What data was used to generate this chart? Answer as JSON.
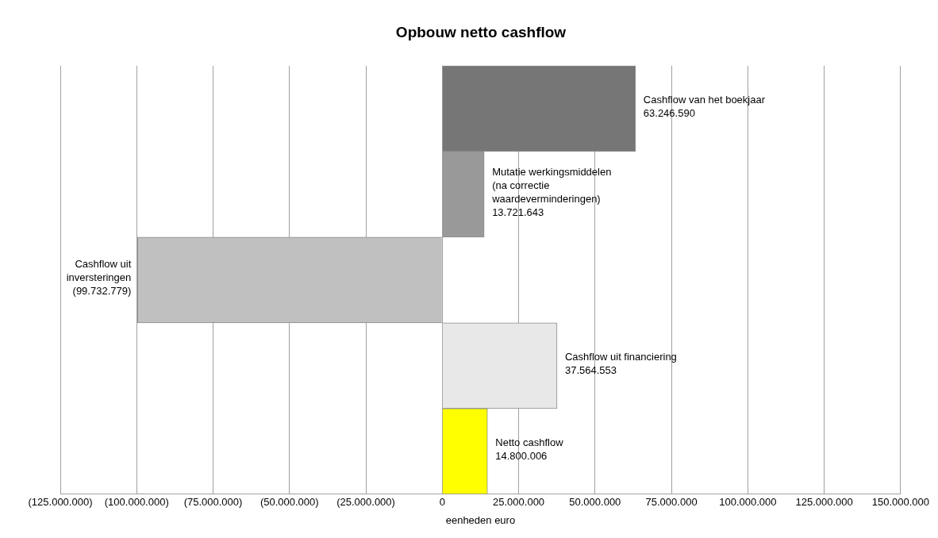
{
  "chart_data": {
    "type": "bar",
    "orientation": "horizontal",
    "title": "Opbouw netto cashflow",
    "xlabel": "eenheden euro",
    "categories": [
      "Cashflow van het boekjaar",
      "Mutatie werkingsmiddelen (na correctie waardeverminderingen)",
      "Cashflow uit inversteringen",
      "Cashflow uit financiering",
      "Netto cashflow"
    ],
    "values": [
      63246590,
      13721643,
      -99732779,
      37564553,
      14800006
    ],
    "colors": [
      "#767676",
      "#999999",
      "#c0c0c0",
      "#e8e8e8",
      "#ffff00"
    ],
    "value_labels": [
      "63.246.590",
      "13.721.643",
      "(99.732.779)",
      "37.564.553",
      "14.800.006"
    ],
    "xlim": [
      -125000000,
      150000000
    ],
    "xticks": [
      {
        "value": -125000000,
        "label": "(125.000.000)"
      },
      {
        "value": -100000000,
        "label": "(100.000.000)"
      },
      {
        "value": -75000000,
        "label": "(75.000.000)"
      },
      {
        "value": -50000000,
        "label": "(50.000.000)"
      },
      {
        "value": -25000000,
        "label": "(25.000.000)"
      },
      0,
      {
        "value": 25000000,
        "label": "25.000.000"
      },
      {
        "value": 50000000,
        "label": "50.000.000"
      },
      {
        "value": 75000000,
        "label": "75.000.000"
      },
      {
        "value": 100000000,
        "label": "100.000.000"
      },
      {
        "value": 125000000,
        "label": "125.000.000"
      },
      {
        "value": 150000000,
        "label": "150.000.000"
      }
    ],
    "grid": "x",
    "legend": false,
    "tick_labels": "x"
  }
}
